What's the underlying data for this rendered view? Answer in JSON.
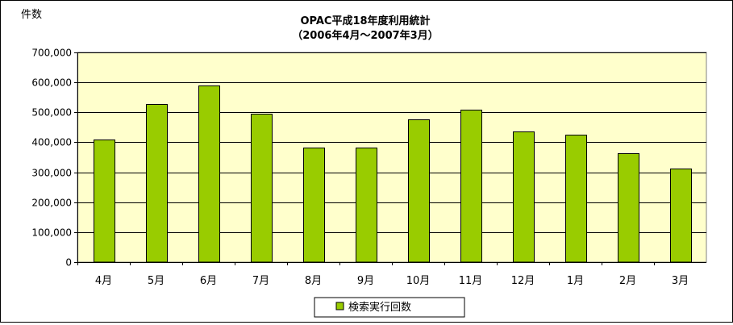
{
  "chart_data": {
    "type": "bar",
    "title": "OPAC平成18年度利用統計",
    "subtitle": "（2006年4月～2007年3月）",
    "ylabel": "件数",
    "xlabel": "",
    "categories": [
      "4月",
      "5月",
      "6月",
      "7月",
      "8月",
      "9月",
      "10月",
      "11月",
      "12月",
      "1月",
      "2月",
      "3月"
    ],
    "series": [
      {
        "name": "検索実行回数",
        "values": [
          410000,
          528000,
          590000,
          495000,
          383000,
          383000,
          477000,
          509000,
          437000,
          426000,
          364000,
          311000
        ]
      }
    ],
    "ylim": [
      0,
      700000
    ],
    "yticks": [
      "0",
      "100,000",
      "200,000",
      "300,000",
      "400,000",
      "500,000",
      "600,000",
      "700,000"
    ],
    "grid": true,
    "legend_position": "bottom",
    "colors": {
      "bar": "#99CC00",
      "plot_background": "#FFFFCC",
      "gridline": "#000000"
    }
  }
}
